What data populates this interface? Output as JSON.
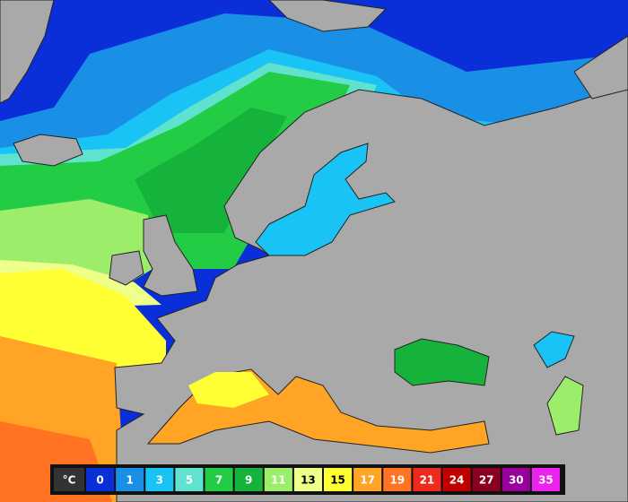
{
  "legend": {
    "unit": "°C",
    "unit_color": "#333333",
    "items": [
      {
        "label": "0",
        "color": "#0a2fd9",
        "text_color": "#ffffff"
      },
      {
        "label": "1",
        "color": "#1a8fe6",
        "text_color": "#ffffff"
      },
      {
        "label": "3",
        "color": "#19c3f5",
        "text_color": "#ffffff"
      },
      {
        "label": "5",
        "color": "#5fe3cf",
        "text_color": "#ffffff"
      },
      {
        "label": "7",
        "color": "#22cc44",
        "text_color": "#ffffff"
      },
      {
        "label": "9",
        "color": "#16b33c",
        "text_color": "#ffffff"
      },
      {
        "label": "11",
        "color": "#9cee6a",
        "text_color": "#ffffff"
      },
      {
        "label": "13",
        "color": "#eeff8a",
        "text_color": "#000000"
      },
      {
        "label": "15",
        "color": "#ffff33",
        "text_color": "#000000"
      },
      {
        "label": "17",
        "color": "#ffa424",
        "text_color": "#ffffff"
      },
      {
        "label": "19",
        "color": "#ff7322",
        "text_color": "#ffffff"
      },
      {
        "label": "21",
        "color": "#ee2a1e",
        "text_color": "#ffffff"
      },
      {
        "label": "24",
        "color": "#c00000",
        "text_color": "#ffffff"
      },
      {
        "label": "27",
        "color": "#8a0020",
        "text_color": "#ffffff"
      },
      {
        "label": "30",
        "color": "#990099",
        "text_color": "#ffffff"
      },
      {
        "label": "35",
        "color": "#ee22ee",
        "text_color": "#ffffff"
      }
    ]
  }
}
